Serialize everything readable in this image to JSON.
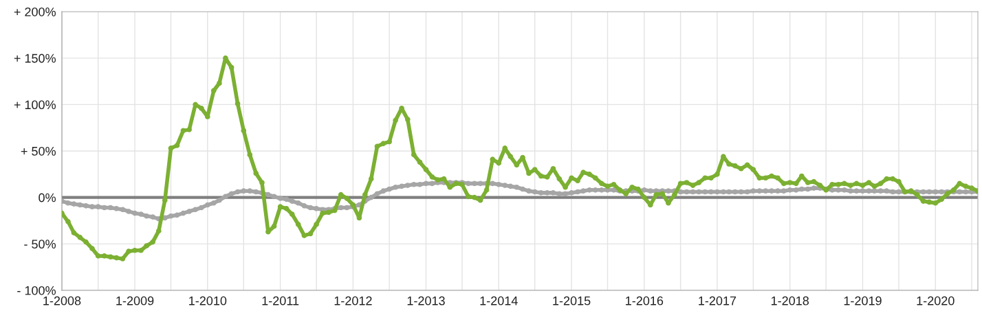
{
  "chart_data": {
    "type": "line",
    "marker": "circle",
    "line_style": "solid",
    "grid": true,
    "xlim": [
      "2008-01",
      "2020-08"
    ],
    "ylim": [
      -100,
      200
    ],
    "yticks": [
      {
        "value": -100,
        "label": "- 100%"
      },
      {
        "value": -50,
        "label": "- 50%"
      },
      {
        "value": 0,
        "label": "0%"
      },
      {
        "value": 50,
        "label": "+ 50%"
      },
      {
        "value": 100,
        "label": "+ 100%"
      },
      {
        "value": 150,
        "label": "+ 150%"
      },
      {
        "value": 200,
        "label": "+ 200%"
      }
    ],
    "xticks": [
      {
        "value": "2008-01",
        "label": "1-2008"
      },
      {
        "value": "2008-07",
        "label": null
      },
      {
        "value": "2009-01",
        "label": "1-2009"
      },
      {
        "value": "2009-07",
        "label": null
      },
      {
        "value": "2010-01",
        "label": "1-2010"
      },
      {
        "value": "2010-07",
        "label": null
      },
      {
        "value": "2011-01",
        "label": "1-2011"
      },
      {
        "value": "2011-07",
        "label": null
      },
      {
        "value": "2012-01",
        "label": "1-2012"
      },
      {
        "value": "2012-07",
        "label": null
      },
      {
        "value": "2013-01",
        "label": "1-2013"
      },
      {
        "value": "2013-07",
        "label": null
      },
      {
        "value": "2014-01",
        "label": "1-2014"
      },
      {
        "value": "2014-07",
        "label": null
      },
      {
        "value": "2015-01",
        "label": "1-2015"
      },
      {
        "value": "2015-07",
        "label": null
      },
      {
        "value": "2016-01",
        "label": "1-2016"
      },
      {
        "value": "2016-07",
        "label": null
      },
      {
        "value": "2017-01",
        "label": "1-2017"
      },
      {
        "value": "2017-07",
        "label": null
      },
      {
        "value": "2018-01",
        "label": "1-2018"
      },
      {
        "value": "2018-07",
        "label": null
      },
      {
        "value": "2019-01",
        "label": "1-2019"
      },
      {
        "value": "2019-07",
        "label": null
      },
      {
        "value": "2020-01",
        "label": "1-2020"
      },
      {
        "value": "2020-07",
        "label": null
      }
    ],
    "ref_lines": [
      {
        "axis": "y",
        "value": 0,
        "label": null,
        "color": "#7f7f7f"
      }
    ],
    "x": [
      "2008-01",
      "2008-02",
      "2008-03",
      "2008-04",
      "2008-05",
      "2008-06",
      "2008-07",
      "2008-08",
      "2008-09",
      "2008-10",
      "2008-11",
      "2008-12",
      "2009-01",
      "2009-02",
      "2009-03",
      "2009-04",
      "2009-05",
      "2009-06",
      "2009-07",
      "2009-08",
      "2009-09",
      "2009-10",
      "2009-11",
      "2009-12",
      "2010-01",
      "2010-02",
      "2010-03",
      "2010-04",
      "2010-05",
      "2010-06",
      "2010-07",
      "2010-08",
      "2010-09",
      "2010-10",
      "2010-11",
      "2010-12",
      "2011-01",
      "2011-02",
      "2011-03",
      "2011-04",
      "2011-05",
      "2011-06",
      "2011-07",
      "2011-08",
      "2011-09",
      "2011-10",
      "2011-11",
      "2011-12",
      "2012-01",
      "2012-02",
      "2012-03",
      "2012-04",
      "2012-05",
      "2012-06",
      "2012-07",
      "2012-08",
      "2012-09",
      "2012-10",
      "2012-11",
      "2012-12",
      "2013-01",
      "2013-02",
      "2013-03",
      "2013-04",
      "2013-05",
      "2013-06",
      "2013-07",
      "2013-08",
      "2013-09",
      "2013-10",
      "2013-11",
      "2013-12",
      "2014-01",
      "2014-02",
      "2014-03",
      "2014-04",
      "2014-05",
      "2014-06",
      "2014-07",
      "2014-08",
      "2014-09",
      "2014-10",
      "2014-11",
      "2014-12",
      "2015-01",
      "2015-02",
      "2015-03",
      "2015-04",
      "2015-05",
      "2015-06",
      "2015-07",
      "2015-08",
      "2015-09",
      "2015-10",
      "2015-11",
      "2015-12",
      "2016-01",
      "2016-02",
      "2016-03",
      "2016-04",
      "2016-05",
      "2016-06",
      "2016-07",
      "2016-08",
      "2016-09",
      "2016-10",
      "2016-11",
      "2016-12",
      "2017-01",
      "2017-02",
      "2017-03",
      "2017-04",
      "2017-05",
      "2017-06",
      "2017-07",
      "2017-08",
      "2017-09",
      "2017-10",
      "2017-11",
      "2017-12",
      "2018-01",
      "2018-02",
      "2018-03",
      "2018-04",
      "2018-05",
      "2018-06",
      "2018-07",
      "2018-08",
      "2018-09",
      "2018-10",
      "2018-11",
      "2018-12",
      "2019-01",
      "2019-02",
      "2019-03",
      "2019-04",
      "2019-05",
      "2019-06",
      "2019-07",
      "2019-08",
      "2019-09",
      "2019-10",
      "2019-11",
      "2019-12",
      "2020-01",
      "2020-02",
      "2020-03",
      "2020-04",
      "2020-05",
      "2020-06",
      "2020-07",
      "2020-08"
    ],
    "series": [
      {
        "color": "#a6a6a6",
        "values": [
          -4,
          -6,
          -7,
          -8,
          -9,
          -10,
          -10,
          -11,
          -11,
          -12,
          -13,
          -15,
          -17,
          -18,
          -20,
          -21,
          -23,
          -22,
          -20,
          -19,
          -17,
          -15,
          -13,
          -11,
          -8,
          -6,
          -3,
          1,
          4,
          6,
          7,
          7,
          6,
          5,
          3,
          1,
          -1,
          -2,
          -4,
          -6,
          -9,
          -11,
          -12,
          -13,
          -13,
          -12,
          -11,
          -11,
          -10,
          -8,
          -4,
          0,
          4,
          7,
          9,
          11,
          12,
          13,
          14,
          14,
          15,
          15,
          16,
          16,
          16,
          16,
          16,
          15,
          15,
          15,
          15,
          15,
          14,
          13,
          12,
          11,
          9,
          7,
          6,
          5,
          5,
          5,
          4,
          4,
          5,
          6,
          7,
          8,
          8,
          8,
          8,
          8,
          7,
          7,
          7,
          7,
          8,
          7,
          7,
          7,
          7,
          7,
          6,
          6,
          6,
          6,
          6,
          6,
          6,
          6,
          6,
          6,
          6,
          6,
          7,
          7,
          7,
          7,
          7,
          7,
          8,
          8,
          9,
          9,
          10,
          10,
          9,
          8,
          8,
          8,
          7,
          7,
          7,
          7,
          7,
          7,
          7,
          6,
          6,
          6,
          6,
          6,
          6,
          6,
          6,
          6,
          6,
          6,
          6,
          6,
          6,
          6
        ]
      },
      {
        "color": "#7cb032",
        "values": [
          -17,
          -26,
          -38,
          -43,
          -48,
          -55,
          -63,
          -63,
          -64,
          -65,
          -66,
          -58,
          -57,
          -57,
          -52,
          -48,
          -36,
          -3,
          53,
          56,
          72,
          73,
          100,
          96,
          87,
          115,
          123,
          150,
          140,
          101,
          72,
          46,
          26,
          16,
          -37,
          -31,
          -10,
          -12,
          -18,
          -29,
          -41,
          -39,
          -29,
          -17,
          -16,
          -14,
          3,
          -1,
          -8,
          -22,
          3,
          20,
          55,
          58,
          60,
          83,
          96,
          84,
          46,
          38,
          30,
          22,
          19,
          20,
          11,
          15,
          14,
          1,
          0,
          -3,
          8,
          41,
          37,
          53,
          44,
          35,
          43,
          26,
          30,
          23,
          22,
          31,
          20,
          11,
          21,
          18,
          27,
          25,
          21,
          15,
          12,
          14,
          8,
          4,
          11,
          9,
          0,
          -8,
          3,
          4,
          -6,
          3,
          15,
          16,
          13,
          16,
          21,
          21,
          25,
          44,
          36,
          34,
          31,
          35,
          30,
          21,
          21,
          23,
          21,
          15,
          16,
          15,
          23,
          16,
          17,
          13,
          8,
          14,
          14,
          15,
          13,
          15,
          13,
          16,
          12,
          15,
          20,
          20,
          17,
          6,
          7,
          3,
          -4,
          -5,
          -6,
          -2,
          4,
          8,
          15,
          12,
          10,
          7
        ]
      }
    ]
  }
}
